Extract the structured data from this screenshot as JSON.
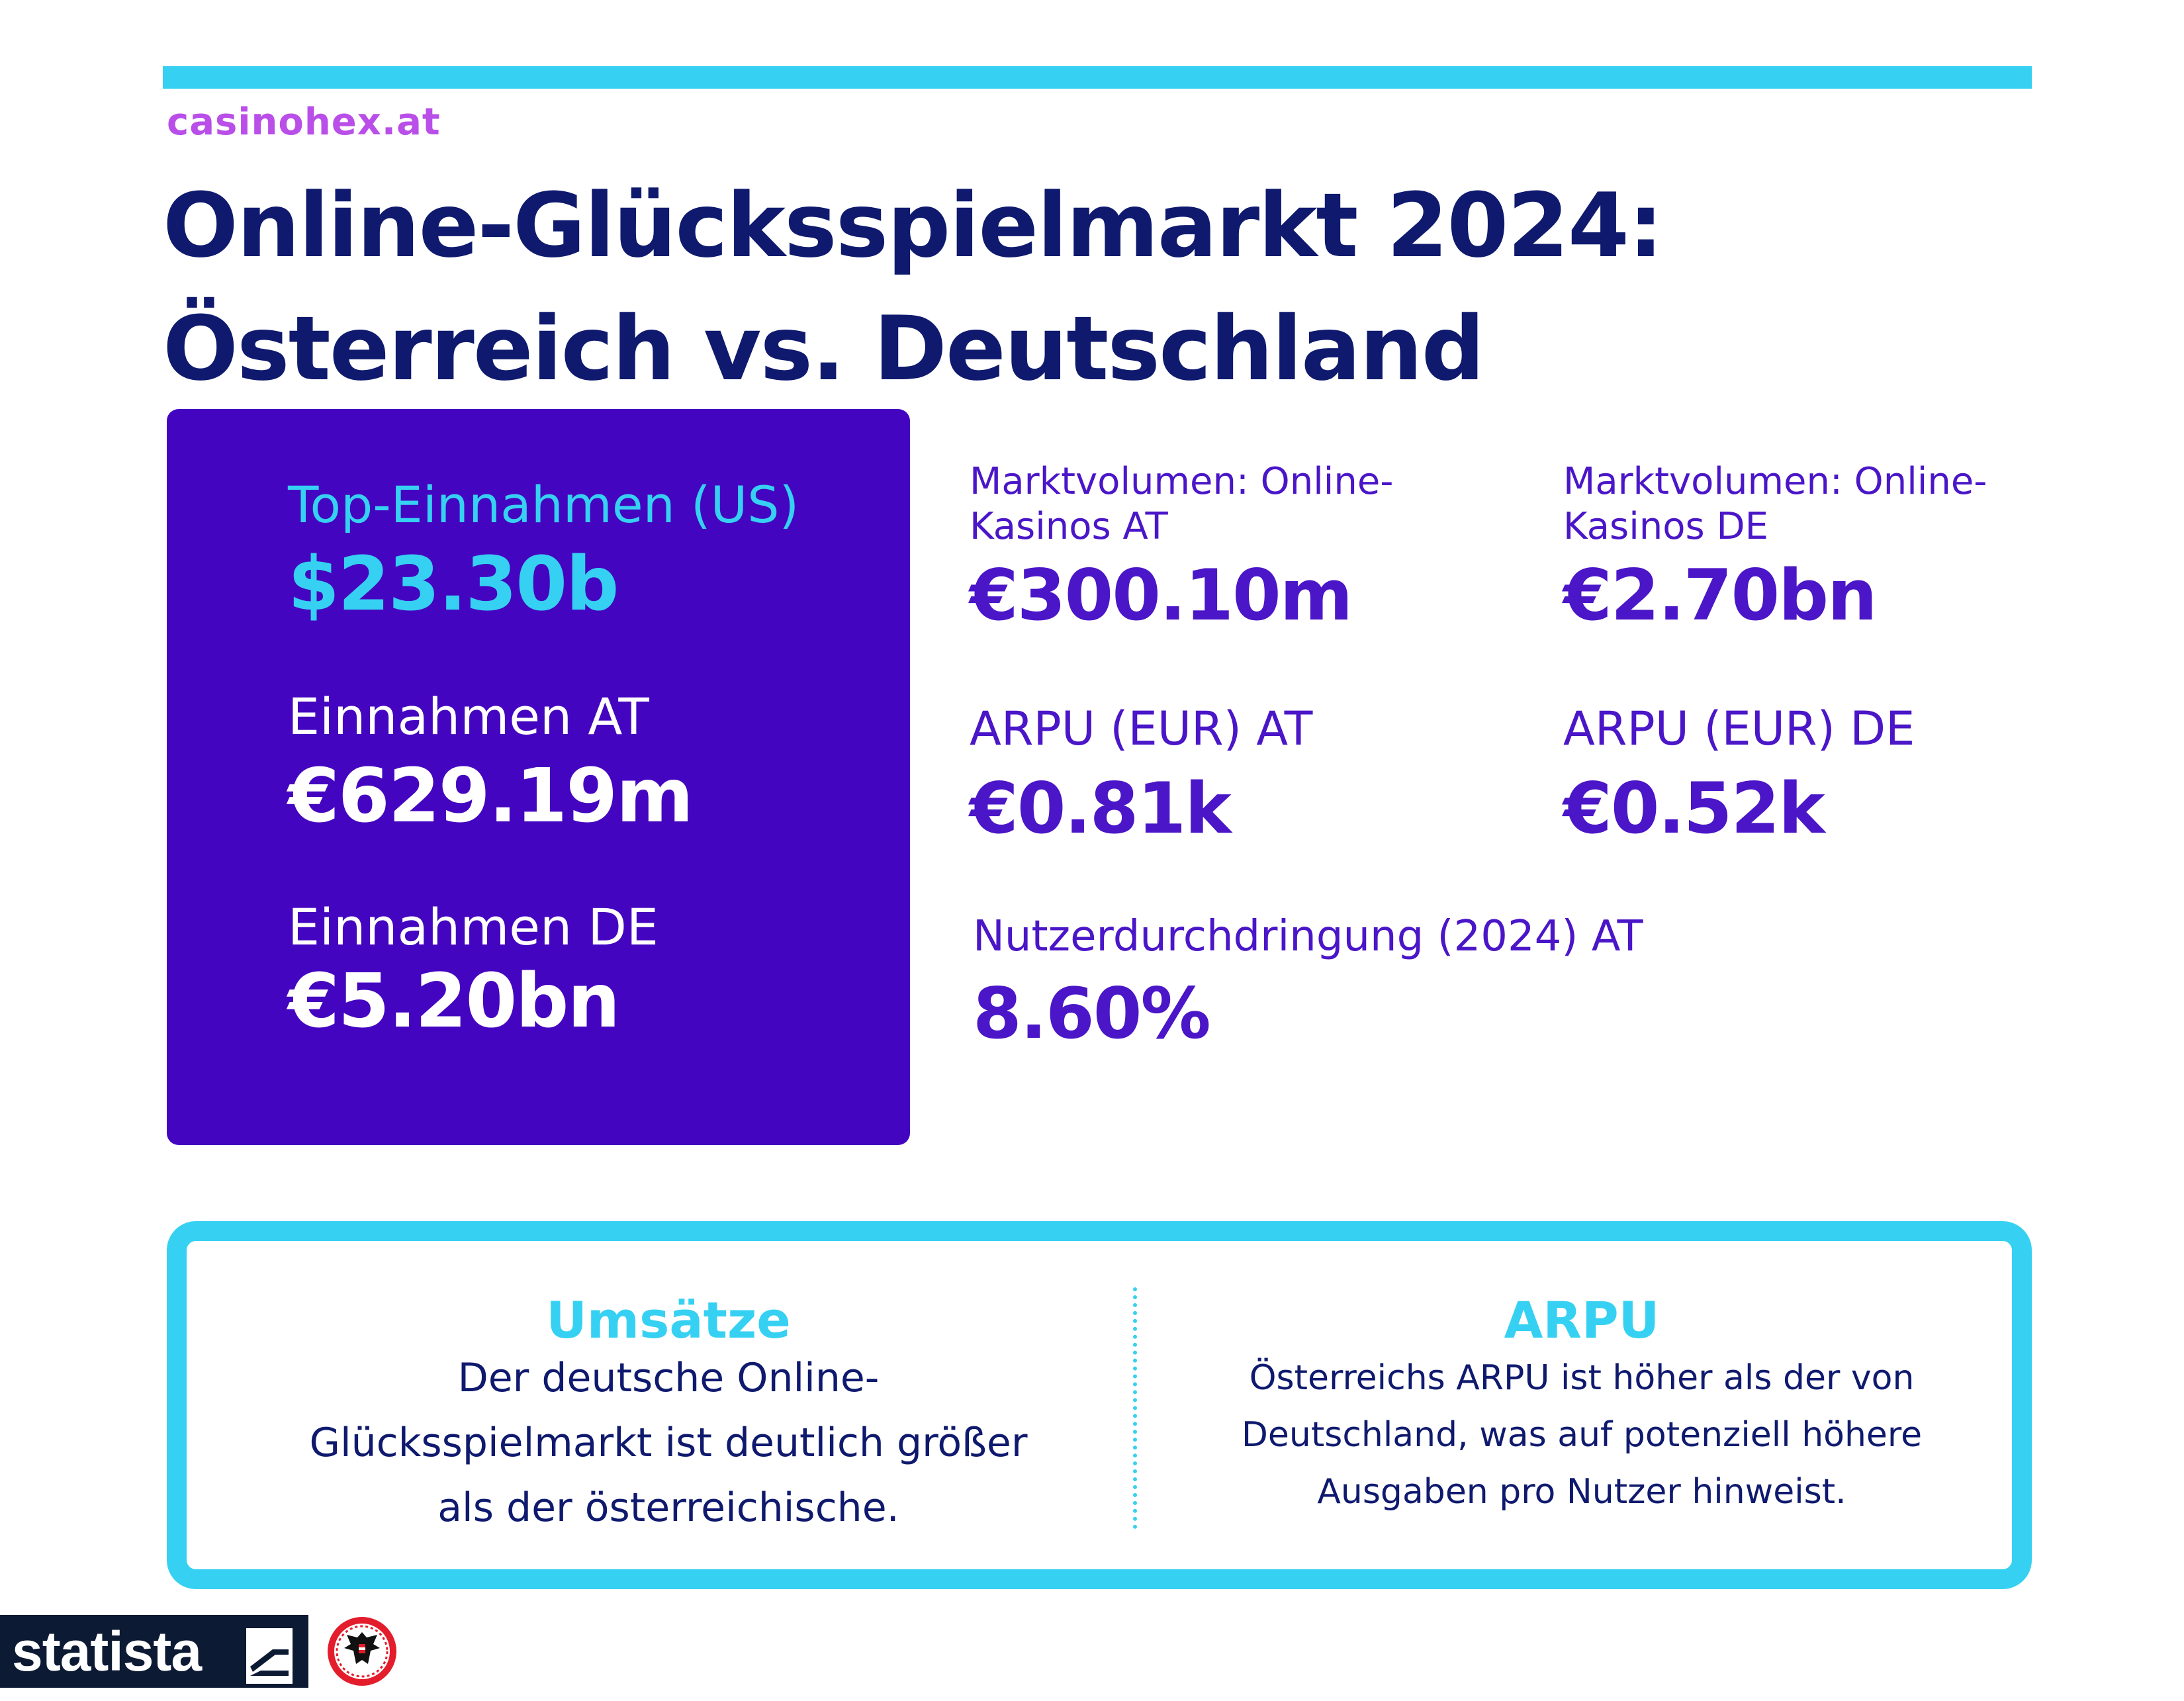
{
  "brand": "casinohex.at",
  "title": {
    "line1": "Online-Glücksspielmarkt 2024:",
    "line2": "Österreich vs. Deutschland"
  },
  "left_card": {
    "top": {
      "label": "Top-Einnahmen (US)",
      "value": "$23.30b"
    },
    "at": {
      "label": "Einnahmen AT",
      "value": "€629.19m"
    },
    "de": {
      "label": "Einnahmen DE",
      "value": "€5.20bn"
    }
  },
  "stats": {
    "market_at": {
      "label_line1": "Marktvolumen: Online-",
      "label_line2": "Kasinos AT",
      "value": "€300.10m"
    },
    "market_de": {
      "label_line1": "Marktvolumen: Online-",
      "label_line2": "Kasinos DE",
      "value": "€2.70bn"
    },
    "arpu_at": {
      "label": "ARPU (EUR) AT",
      "value": "€0.81k"
    },
    "arpu_de": {
      "label": "ARPU (EUR) DE",
      "value": "€0.52k"
    },
    "penetration_at": {
      "label": "Nutzerdurchdringung (2024) AT",
      "value": "8.60%"
    }
  },
  "bottom": {
    "left": {
      "heading": "Umsätze",
      "line1": "Der deutsche Online-",
      "line2": "Glücksspielmarkt ist deutlich größer",
      "line3": "als der österreichische."
    },
    "right": {
      "heading": "ARPU",
      "line1": "Österreichs ARPU ist höher als der von",
      "line2": "Deutschland, was auf potenziell höhere",
      "line3": "Ausgaben pro Nutzer hinweist."
    }
  },
  "footer": {
    "statista": "statista"
  },
  "colors": {
    "accent": "#36d1f2",
    "purple": "#4405c0",
    "navy": "#0f1a6e",
    "brand": "#b94ee8"
  }
}
